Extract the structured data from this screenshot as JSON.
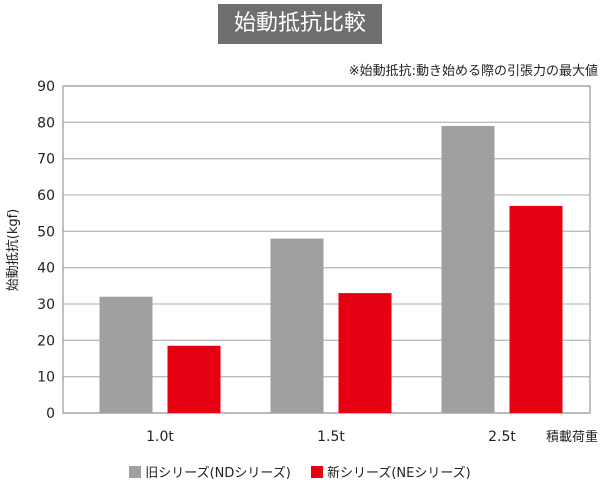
{
  "chart_data": {
    "type": "bar",
    "title": "始動抵抗比較",
    "annotation": "※始動抵抗:動き始める際の引張力の最大値",
    "ylabel": "始動抵抗(kgf)",
    "xlabel": "積載荷重",
    "ylim": [
      0,
      90
    ],
    "yticks": [
      0,
      10,
      20,
      30,
      40,
      50,
      60,
      70,
      80,
      90
    ],
    "grid": true,
    "legend_placement": "bottom",
    "categories": [
      "1.0t",
      "1.5t",
      "2.5t"
    ],
    "series": [
      {
        "name": "旧シリーズ(NDシリーズ)",
        "color": "#a0a0a1",
        "values": [
          32,
          48,
          79
        ]
      },
      {
        "name": "新シリーズ(NEシリーズ)",
        "color": "#e50012",
        "values": [
          18.5,
          33,
          57
        ]
      }
    ]
  }
}
